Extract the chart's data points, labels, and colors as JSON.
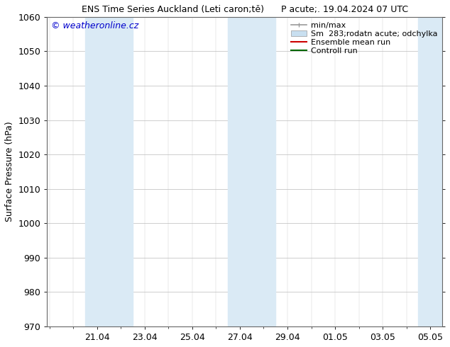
{
  "title": "ENS Time Series Auckland (Leti caron;tě)      P acute;. 19.04.2024 07 UTC",
  "ylabel": "Surface Pressure (hPa)",
  "ylim": [
    970,
    1060
  ],
  "yticks": [
    970,
    980,
    990,
    1000,
    1010,
    1020,
    1030,
    1040,
    1050,
    1060
  ],
  "xtick_labels": [
    "21.04",
    "23.04",
    "25.04",
    "27.04",
    "29.04",
    "01.05",
    "03.05",
    "05.05"
  ],
  "xtick_positions": [
    2,
    4,
    6,
    8,
    10,
    12,
    14,
    16
  ],
  "x_minor_ticks": [
    0,
    1,
    2,
    3,
    4,
    5,
    6,
    7,
    8,
    9,
    10,
    11,
    12,
    13,
    14,
    15,
    16
  ],
  "xlim": [
    -0.1,
    16.5
  ],
  "watermark": "© weatheronline.cz",
  "watermark_color": "#0000cc",
  "legend_entries": [
    "min/max",
    "Sm  283;rodatn acute; odchylka",
    "Ensemble mean run",
    "Controll run"
  ],
  "legend_minmax_color": "#999999",
  "legend_band_color": "#c8dff0",
  "legend_ensemble_color": "#cc0000",
  "legend_control_color": "#006600",
  "shaded_bands": [
    {
      "x_start": 1.5,
      "x_end": 3.5
    },
    {
      "x_start": 7.5,
      "x_end": 9.5
    },
    {
      "x_start": 15.5,
      "x_end": 16.5
    }
  ],
  "band_color": "#daeaf5",
  "bg_color": "#ffffff",
  "title_fontsize": 9,
  "tick_fontsize": 9,
  "ylabel_fontsize": 9,
  "legend_fontsize": 8,
  "watermark_fontsize": 9
}
